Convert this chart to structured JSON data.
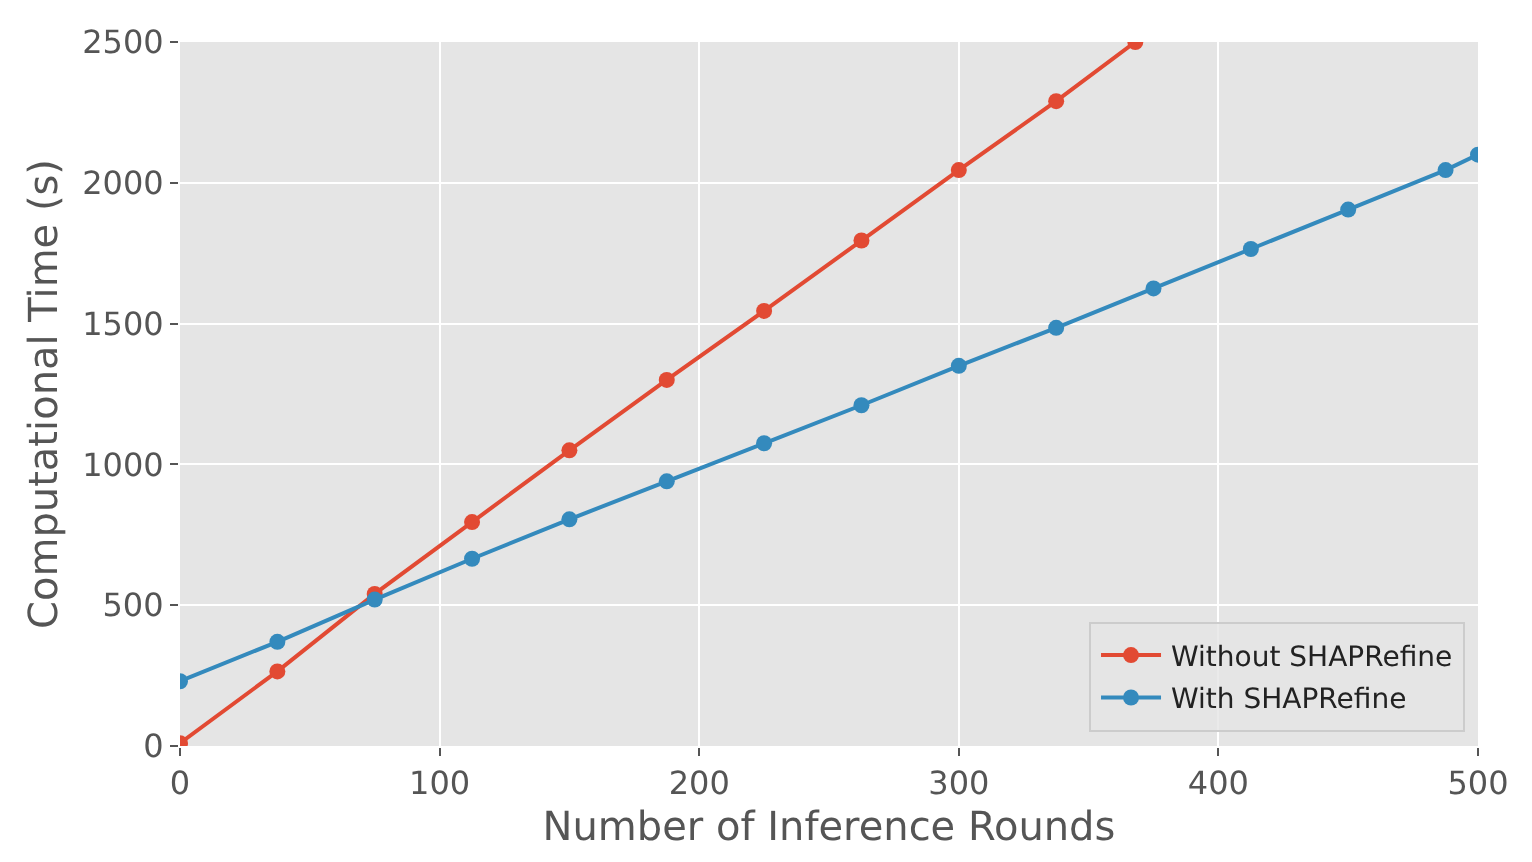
{
  "chart_data": {
    "type": "line",
    "xlabel": "Number of Inference Rounds",
    "ylabel": "Computational Time (s)",
    "series": [
      {
        "name": "Without SHAPRefine",
        "color": "#e24a33",
        "x": [
          0,
          37.5,
          75,
          112.5,
          150,
          187.5,
          225,
          262.5,
          300,
          337.5,
          368
        ],
        "values": [
          10,
          265,
          540,
          795,
          1050,
          1300,
          1545,
          1795,
          2045,
          2290,
          2500
        ]
      },
      {
        "name": "With SHAPRefine",
        "color": "#348abd",
        "x": [
          0,
          37.5,
          75,
          112.5,
          150,
          187.5,
          225,
          262.5,
          300,
          337.5,
          375,
          412.5,
          450,
          487.5,
          500
        ],
        "values": [
          230,
          370,
          520,
          665,
          805,
          940,
          1075,
          1210,
          1350,
          1485,
          1625,
          1765,
          1905,
          2045,
          2100
        ]
      }
    ],
    "xlim": [
      0,
      500
    ],
    "xticks": [
      0,
      100,
      200,
      300,
      400,
      500
    ],
    "ylim": [
      0,
      2500
    ],
    "yticks": [
      0,
      500,
      1000,
      1500,
      2000,
      2500
    ],
    "grid": true,
    "legend": "bottom right",
    "marker": "circle",
    "line_style": "solid"
  }
}
